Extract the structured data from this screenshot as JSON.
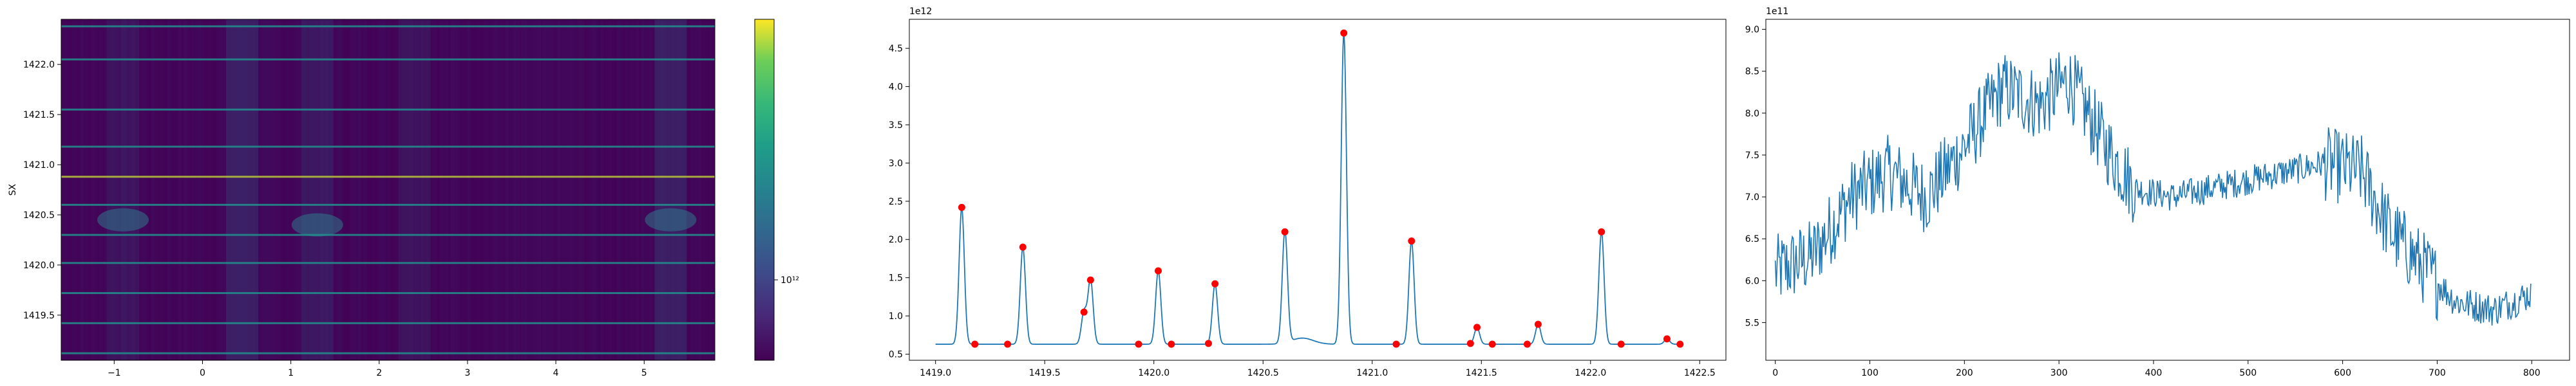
{
  "chart_data": [
    {
      "type": "heatmap",
      "ylabel": "SX",
      "xlim": [
        -1.6,
        5.8
      ],
      "ylim": [
        1419.05,
        1422.45
      ],
      "xticks": [
        -1,
        0,
        1,
        2,
        3,
        4,
        5
      ],
      "xtick_labels": [
        "−1",
        "0",
        "1",
        "2",
        "3",
        "4",
        "5"
      ],
      "yticks": [
        1419.5,
        1420.0,
        1420.5,
        1421.0,
        1421.5,
        1422.0
      ],
      "ytick_labels": [
        "1419.5",
        "1420.0",
        "1420.5",
        "1421.0",
        "1421.5",
        "1422.0"
      ],
      "colormap": "viridis",
      "colorbar_tick_label": "10¹²",
      "bright_rows": [
        1419.12,
        1419.42,
        1419.72,
        1420.02,
        1420.3,
        1420.6,
        1420.88,
        1421.18,
        1421.55,
        1422.05,
        1422.38
      ],
      "colors": {
        "low": "#440154",
        "mid": "#21918c",
        "high": "#fde725"
      }
    },
    {
      "type": "line",
      "exponent_label": "1e12",
      "xlim": [
        1418.88,
        1422.62
      ],
      "ylim": [
        0.42,
        4.88
      ],
      "xticks": [
        1419.0,
        1419.5,
        1420.0,
        1420.5,
        1421.0,
        1421.5,
        1422.0,
        1422.5
      ],
      "xtick_labels": [
        "1419.0",
        "1419.5",
        "1420.0",
        "1420.5",
        "1421.0",
        "1421.5",
        "1422.0",
        "1422.5"
      ],
      "yticks": [
        0.5,
        1.0,
        1.5,
        2.0,
        2.5,
        3.0,
        3.5,
        4.0,
        4.5
      ],
      "ytick_labels": [
        "0.5",
        "1.0",
        "1.5",
        "2.0",
        "2.5",
        "3.0",
        "3.5",
        "4.0",
        "4.5"
      ],
      "baseline": 0.63,
      "peaks": [
        {
          "x": 1419.12,
          "y": 2.42
        },
        {
          "x": 1419.4,
          "y": 1.9
        },
        {
          "x": 1419.68,
          "y": 1.05
        },
        {
          "x": 1419.71,
          "y": 1.47
        },
        {
          "x": 1420.02,
          "y": 1.59
        },
        {
          "x": 1420.28,
          "y": 1.42
        },
        {
          "x": 1420.6,
          "y": 2.1
        },
        {
          "x": 1420.87,
          "y": 4.7
        },
        {
          "x": 1421.18,
          "y": 1.98
        },
        {
          "x": 1421.48,
          "y": 0.85
        },
        {
          "x": 1421.76,
          "y": 0.89
        },
        {
          "x": 1422.05,
          "y": 2.1
        },
        {
          "x": 1422.35,
          "y": 0.7
        }
      ],
      "markers": [
        {
          "x": 1419.12,
          "y": 2.42
        },
        {
          "x": 1419.18,
          "y": 0.63
        },
        {
          "x": 1419.33,
          "y": 0.63
        },
        {
          "x": 1419.4,
          "y": 1.9
        },
        {
          "x": 1419.68,
          "y": 1.05
        },
        {
          "x": 1419.71,
          "y": 1.47
        },
        {
          "x": 1419.93,
          "y": 0.63
        },
        {
          "x": 1420.02,
          "y": 1.59
        },
        {
          "x": 1420.08,
          "y": 0.63
        },
        {
          "x": 1420.25,
          "y": 0.64
        },
        {
          "x": 1420.28,
          "y": 1.42
        },
        {
          "x": 1420.6,
          "y": 2.1
        },
        {
          "x": 1420.87,
          "y": 4.7
        },
        {
          "x": 1421.11,
          "y": 0.63
        },
        {
          "x": 1421.18,
          "y": 1.98
        },
        {
          "x": 1421.45,
          "y": 0.64
        },
        {
          "x": 1421.48,
          "y": 0.85
        },
        {
          "x": 1421.55,
          "y": 0.63
        },
        {
          "x": 1421.71,
          "y": 0.63
        },
        {
          "x": 1421.76,
          "y": 0.89
        },
        {
          "x": 1422.05,
          "y": 2.1
        },
        {
          "x": 1422.14,
          "y": 0.63
        },
        {
          "x": 1422.35,
          "y": 0.7
        },
        {
          "x": 1422.41,
          "y": 0.63
        }
      ],
      "colors": {
        "line": "#1f77b4",
        "marker": "#ff0000"
      }
    },
    {
      "type": "line",
      "exponent_label": "1e11",
      "xlim": [
        -10,
        840
      ],
      "ylim": [
        5.05,
        9.12
      ],
      "xticks": [
        0,
        100,
        200,
        300,
        400,
        500,
        600,
        700,
        800
      ],
      "xtick_labels": [
        "0",
        "100",
        "200",
        "300",
        "400",
        "500",
        "600",
        "700",
        "800"
      ],
      "yticks": [
        5.5,
        6.0,
        6.5,
        7.0,
        7.5,
        8.0,
        8.5,
        9.0
      ],
      "ytick_labels": [
        "5.5",
        "6.0",
        "6.5",
        "7.0",
        "7.5",
        "8.0",
        "8.5",
        "9.0"
      ],
      "n_points": 800,
      "trend": [
        {
          "x": 0,
          "y": 6.1
        },
        {
          "x": 40,
          "y": 6.3
        },
        {
          "x": 80,
          "y": 7.0
        },
        {
          "x": 120,
          "y": 7.3
        },
        {
          "x": 160,
          "y": 7.0
        },
        {
          "x": 200,
          "y": 7.6
        },
        {
          "x": 240,
          "y": 8.3
        },
        {
          "x": 280,
          "y": 8.1
        },
        {
          "x": 310,
          "y": 8.4
        },
        {
          "x": 350,
          "y": 7.6
        },
        {
          "x": 380,
          "y": 7.1
        },
        {
          "x": 420,
          "y": 7.0
        },
        {
          "x": 460,
          "y": 7.1
        },
        {
          "x": 500,
          "y": 7.2
        },
        {
          "x": 540,
          "y": 7.3
        },
        {
          "x": 580,
          "y": 7.4
        },
        {
          "x": 620,
          "y": 7.3
        },
        {
          "x": 650,
          "y": 6.6
        },
        {
          "x": 690,
          "y": 6.1
        },
        {
          "x": 720,
          "y": 5.75
        },
        {
          "x": 760,
          "y": 5.65
        },
        {
          "x": 800,
          "y": 5.85
        }
      ],
      "colors": {
        "line": "#1f77b4"
      }
    }
  ]
}
